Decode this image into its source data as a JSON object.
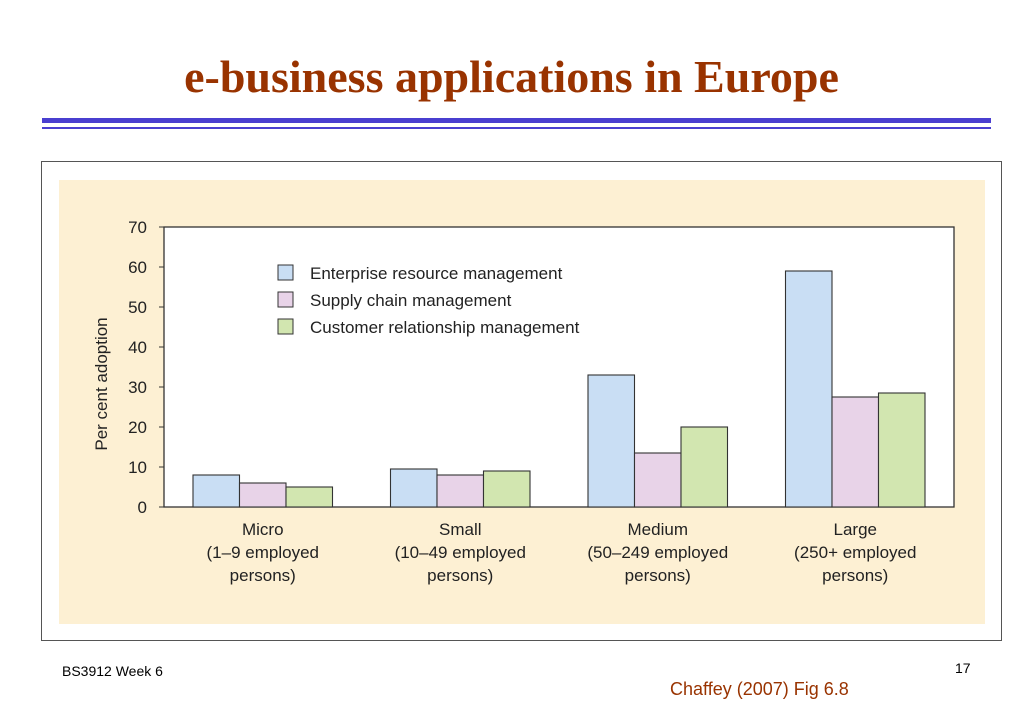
{
  "slide": {
    "title": "e-business applications in Europe",
    "footer_left": "BS3912 Week 6",
    "page_number": "17",
    "source": "Chaffey (2007) Fig 6.8"
  },
  "colors": {
    "title": "#993300",
    "rule": "#4a3fd0",
    "figure_background": "#fdf0d3"
  },
  "chart_data": {
    "type": "bar",
    "title": "",
    "xlabel": "",
    "ylabel": "Per cent adoption",
    "ylim": [
      0,
      70
    ],
    "yticks": [
      0,
      10,
      20,
      30,
      40,
      50,
      60,
      70
    ],
    "grid": false,
    "legend_position": "top-left",
    "categories": [
      [
        "Micro",
        "(1–9 employed",
        "persons)"
      ],
      [
        "Small",
        "(10–49 employed",
        "persons)"
      ],
      [
        "Medium",
        "(50–249 employed",
        "persons)"
      ],
      [
        "Large",
        "(250+ employed",
        "persons)"
      ]
    ],
    "series": [
      {
        "name": "Enterprise resource management",
        "color": "#c9def4",
        "values": [
          8,
          9.5,
          33,
          59
        ]
      },
      {
        "name": "Supply chain management",
        "color": "#e8d3e8",
        "values": [
          6,
          8,
          13.5,
          27.5
        ]
      },
      {
        "name": "Customer relationship management",
        "color": "#d2e6b0",
        "values": [
          5,
          9,
          20,
          28.5
        ]
      }
    ]
  }
}
